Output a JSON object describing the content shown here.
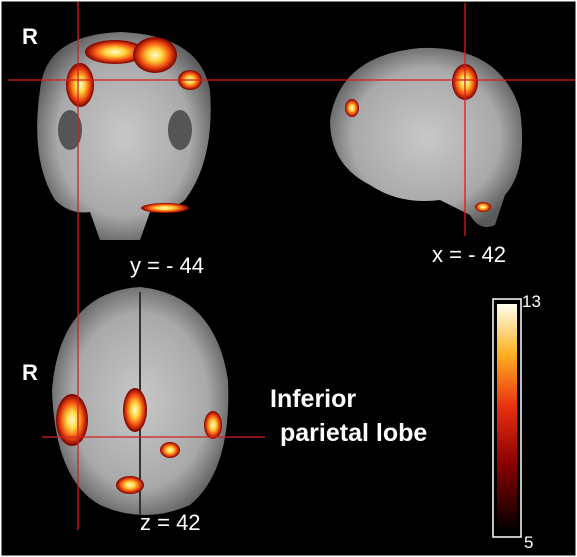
{
  "panels": [
    {
      "orientation_label": "R",
      "coordinate": "y = - 44"
    },
    {
      "coordinate": "x = - 42"
    },
    {
      "orientation_label": "R",
      "coordinate": "z = 42"
    }
  ],
  "annotation": [
    "Inferior",
    "parietal lobe"
  ],
  "colorbar": {
    "max": 13,
    "min": 5
  }
}
